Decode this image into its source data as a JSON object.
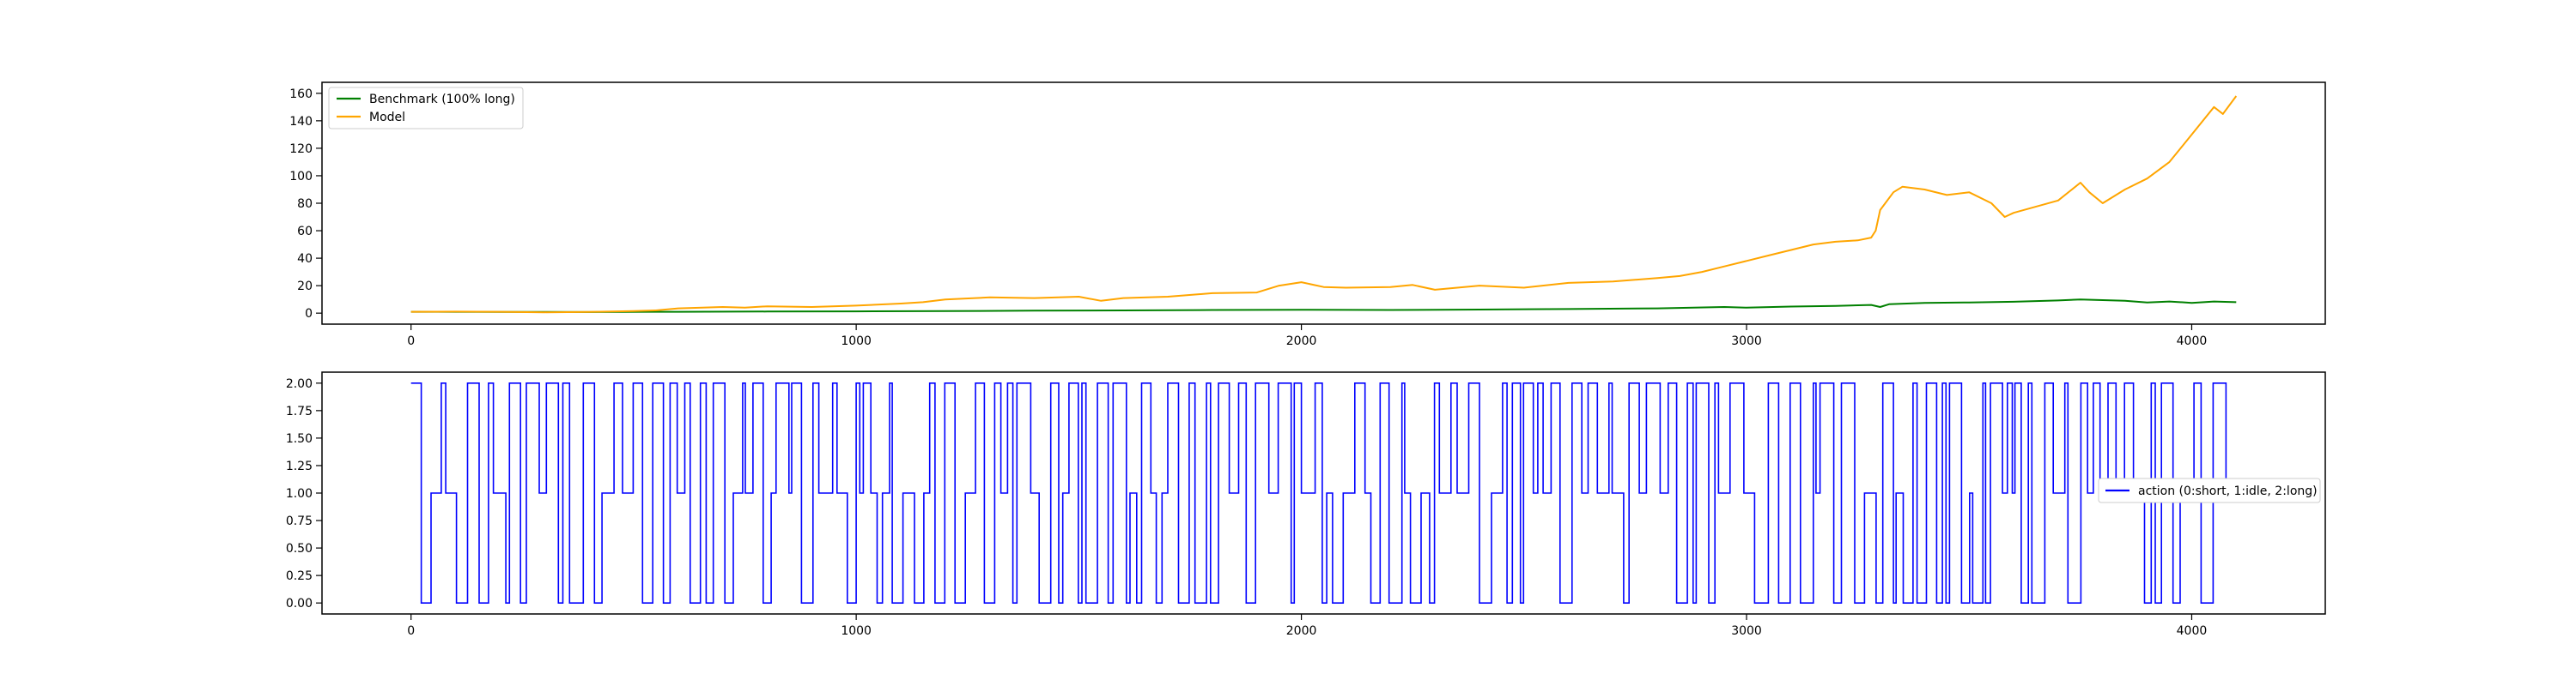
{
  "chart_data": [
    {
      "type": "line",
      "x_ticks": [
        0,
        1000,
        2000,
        3000,
        4000
      ],
      "y_ticks": [
        0,
        20,
        40,
        60,
        80,
        100,
        120,
        140,
        160
      ],
      "xlim": [
        -200,
        4300
      ],
      "ylim": [
        -8,
        168
      ],
      "grid": false,
      "legend_position": "upper-left",
      "series": [
        {
          "name": "Benchmark (100% long)",
          "color": "#008000",
          "x": [
            0,
            200,
            400,
            600,
            800,
            1000,
            1200,
            1400,
            1600,
            1800,
            2000,
            2200,
            2400,
            2600,
            2800,
            2950,
            3000,
            3100,
            3200,
            3280,
            3300,
            3320,
            3400,
            3500,
            3600,
            3700,
            3750,
            3800,
            3850,
            3900,
            3950,
            4000,
            4050,
            4100
          ],
          "y": [
            1,
            0.9,
            0.8,
            1,
            1.2,
            1.3,
            1.5,
            1.8,
            2,
            2.3,
            2.5,
            2.3,
            2.6,
            3,
            3.5,
            4.5,
            4,
            4.8,
            5.3,
            6,
            4.5,
            6.5,
            7.5,
            7.8,
            8.3,
            9.2,
            10,
            9.5,
            9,
            7.8,
            8.5,
            7.5,
            8.5,
            8
          ]
        },
        {
          "name": "Model",
          "color": "#ffa500",
          "x": [
            0,
            100,
            200,
            300,
            400,
            500,
            550,
            600,
            700,
            750,
            800,
            900,
            1000,
            1100,
            1150,
            1200,
            1300,
            1400,
            1500,
            1550,
            1600,
            1700,
            1800,
            1900,
            1950,
            2000,
            2050,
            2100,
            2200,
            2250,
            2300,
            2400,
            2500,
            2600,
            2700,
            2800,
            2850,
            2900,
            2950,
            3000,
            3050,
            3100,
            3150,
            3200,
            3250,
            3280,
            3290,
            3300,
            3330,
            3350,
            3400,
            3450,
            3500,
            3550,
            3580,
            3600,
            3700,
            3750,
            3770,
            3800,
            3850,
            3900,
            3950,
            4000,
            4050,
            4070,
            4100
          ],
          "y": [
            1,
            1.1,
            1,
            0.6,
            0.9,
            1.5,
            2,
            3.5,
            4.5,
            4,
            5,
            4.5,
            5.5,
            7,
            8,
            10,
            11.5,
            11,
            12,
            9,
            11,
            12,
            14.5,
            15,
            20,
            22.5,
            19,
            18.5,
            19,
            20.5,
            17,
            20,
            18.5,
            22,
            23,
            25.5,
            27,
            30,
            34,
            38,
            42,
            46,
            50,
            52,
            53,
            55,
            60,
            75,
            88,
            92,
            90,
            86,
            88,
            80,
            70,
            73,
            82,
            95,
            88,
            80,
            90,
            98,
            110,
            130,
            150,
            145,
            158
          ]
        }
      ]
    },
    {
      "type": "line",
      "step": true,
      "x_ticks": [
        0,
        1000,
        2000,
        3000,
        4000
      ],
      "y_ticks": [
        "0.00",
        "0.25",
        "0.50",
        "0.75",
        "1.00",
        "1.25",
        "1.50",
        "1.75",
        "2.00"
      ],
      "xlim": [
        -200,
        4300
      ],
      "ylim": [
        -0.1,
        2.1
      ],
      "grid": false,
      "legend_position": "center-right",
      "series": [
        {
          "name": "action (0:short, 1:idle, 2:long)",
          "color": "#0000ff",
          "x_count": 4100,
          "values": [
            0,
            1,
            2
          ]
        }
      ]
    }
  ]
}
